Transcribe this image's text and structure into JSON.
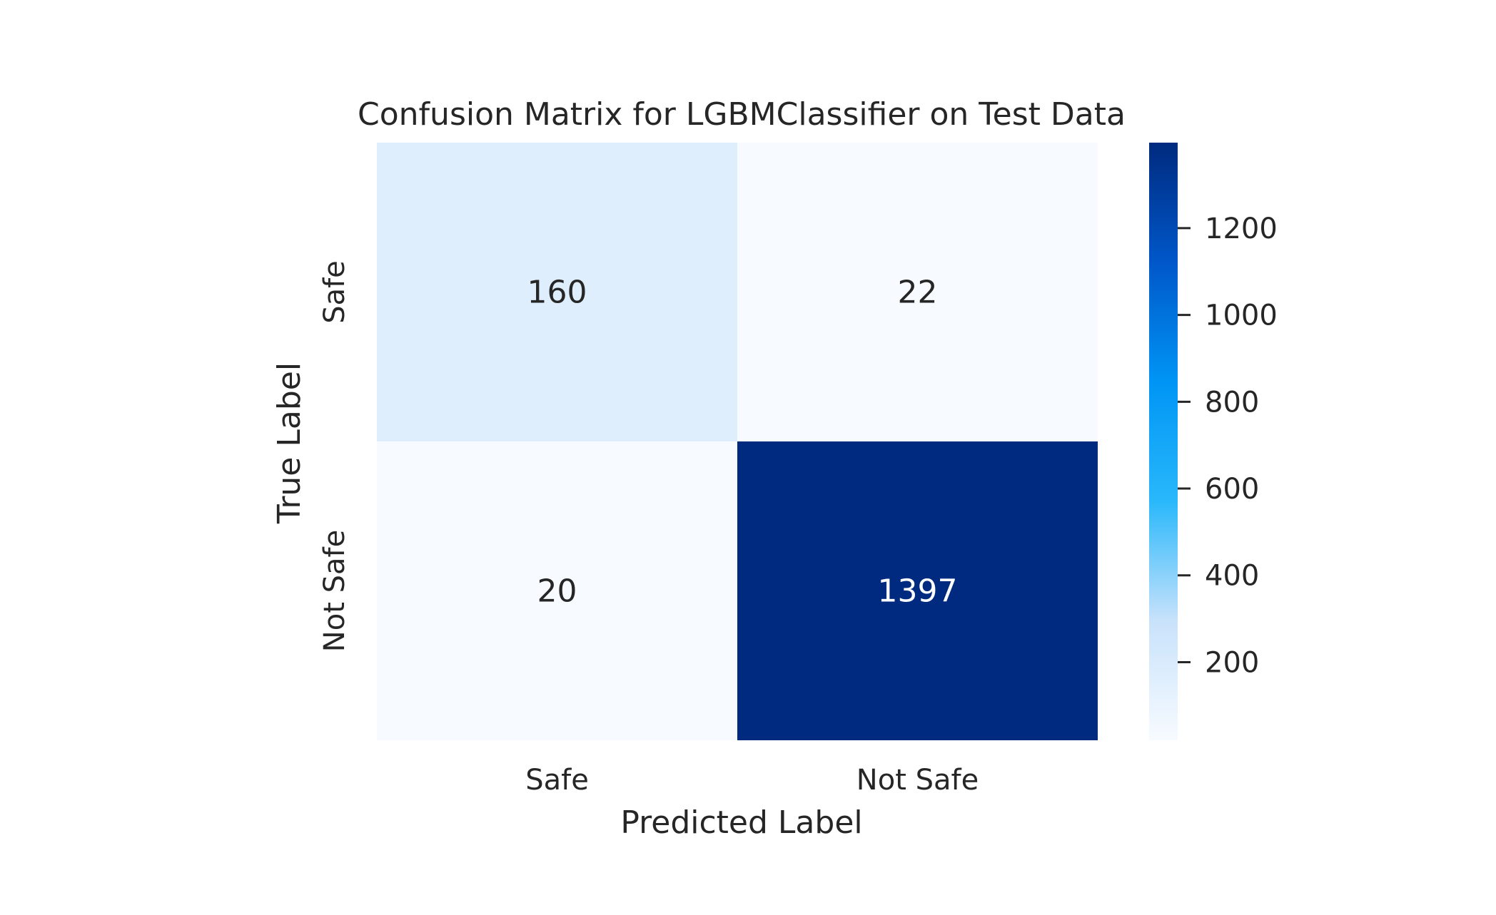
{
  "chart_data": {
    "type": "heatmap",
    "title": "Confusion Matrix for LGBMClassifier on Test Data",
    "xlabel": "Predicted Label",
    "ylabel": "True Label",
    "x_categories": [
      "Safe",
      "Not Safe"
    ],
    "y_categories": [
      "Safe",
      "Not Safe"
    ],
    "values": [
      [
        160,
        22
      ],
      [
        20,
        1397
      ]
    ],
    "colormap": "Blues",
    "colorbar": {
      "range": [
        20,
        1397
      ],
      "ticks": [
        200,
        400,
        600,
        800,
        1000,
        1200
      ]
    },
    "grid": false
  }
}
